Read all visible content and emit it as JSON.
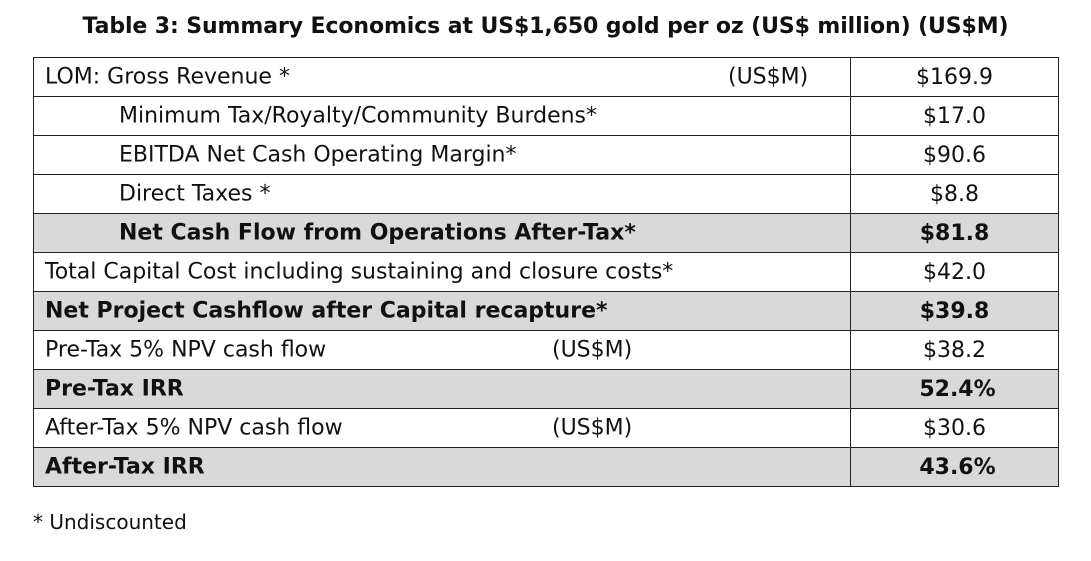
{
  "title": "Table 3: Summary Economics at US$1,650 gold per oz (US$ million) (US$M)",
  "rows": [
    {
      "label": "LOM: Gross Revenue *",
      "unit": "(US$M)",
      "value": "$169.9"
    },
    {
      "label": "Minimum Tax/Royalty/Community Burdens*",
      "value": "$17.0"
    },
    {
      "label": "EBITDA Net Cash Operating Margin*",
      "value": "$90.6"
    },
    {
      "label": "Direct Taxes *",
      "value": "$8.8"
    },
    {
      "label": "Net Cash Flow from Operations After-Tax*",
      "value": "$81.8"
    },
    {
      "label": "Total Capital Cost including sustaining and closure costs*",
      "value": "$42.0"
    },
    {
      "label": "Net Project Cashflow after Capital recapture*",
      "value": "$39.8"
    },
    {
      "label": "Pre-Tax 5% NPV cash flow",
      "unit": "(US$M)",
      "value": "$38.2"
    },
    {
      "label": "Pre-Tax IRR",
      "value": "52.4%"
    },
    {
      "label": "After-Tax 5% NPV cash flow",
      "unit": "(US$M)",
      "value": "$30.6"
    },
    {
      "label": "After-Tax IRR",
      "value": "43.6%"
    }
  ],
  "footnote": "* Undiscounted",
  "colors": {
    "shaded_row": "#d9d9d9",
    "border": "#222222",
    "text": "#111111"
  }
}
